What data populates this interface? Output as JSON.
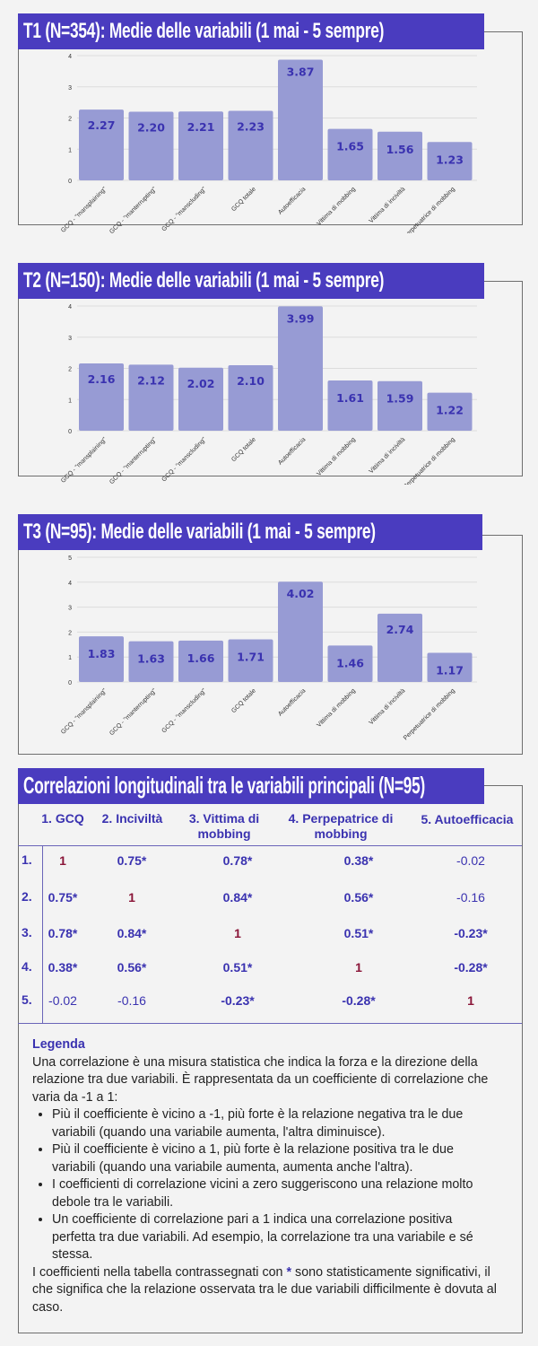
{
  "colors": {
    "header": "#4a3cbf",
    "bar": "#979bd4",
    "value": "#3a32b0",
    "diag": "#8a1538"
  },
  "categories": [
    "GCQ - \"mansplaining\"",
    "GCQ - \"manterrupting\"",
    "GCQ - \"manscluding\"",
    "GCQ totale",
    "Autoefficacia",
    "Vittima di mobbing",
    "Vittima di inciviltà",
    "Perpetuatrice di mobbing"
  ],
  "chart_data": [
    {
      "type": "bar",
      "title": "T1 (N=354): Medie delle variabili (1 mai - 5 sempre)",
      "values": [
        2.27,
        2.2,
        2.21,
        2.23,
        3.87,
        1.65,
        1.56,
        1.23
      ],
      "labels": [
        "2.27",
        "2.20",
        "2.21",
        "2.23",
        "3.87",
        "1.65",
        "1.56",
        "1.23"
      ],
      "ylim": [
        0,
        4
      ],
      "yticks": [
        "0",
        "1",
        "2",
        "3",
        "4"
      ],
      "grid": true
    },
    {
      "type": "bar",
      "title": "T2 (N=150): Medie delle variabili (1 mai - 5 sempre)",
      "values": [
        2.16,
        2.12,
        2.02,
        2.1,
        3.99,
        1.61,
        1.59,
        1.22
      ],
      "labels": [
        "2.16",
        "2.12",
        "2.02",
        "2.10",
        "3.99",
        "1.61",
        "1.59",
        "1.22"
      ],
      "ylim": [
        0,
        4
      ],
      "yticks": [
        "0",
        "1",
        "2",
        "3",
        "4"
      ],
      "grid": true
    },
    {
      "type": "bar",
      "title": "T3 (N=95): Medie delle variabili (1 mai - 5 sempre)",
      "values": [
        1.83,
        1.63,
        1.66,
        1.71,
        4.02,
        1.46,
        2.74,
        1.17
      ],
      "labels": [
        "1.83",
        "1.63",
        "1.66",
        "1.71",
        "4.02",
        "1.46",
        "2.74",
        "1.17"
      ],
      "ylim": [
        0,
        5
      ],
      "yticks": [
        "0",
        "1",
        "2",
        "3",
        "4",
        "5"
      ],
      "grid": true
    }
  ],
  "table": {
    "title": "Correlazioni longitudinali tra le variabili principali (N=95)",
    "headers": [
      "1. GCQ",
      "2. Inciviltà",
      "3. Vittima di mobbing",
      "4. Perpepatrice di mobbing",
      "5. Autoefficacia"
    ],
    "row_labels": [
      "1.",
      "2.",
      "3.",
      "4.",
      "5."
    ],
    "rows": [
      [
        {
          "v": "1",
          "t": "one"
        },
        {
          "v": "0.75*",
          "t": "sig"
        },
        {
          "v": "0.78*",
          "t": "sig"
        },
        {
          "v": "0.38*",
          "t": "sig"
        },
        {
          "v": "-0.02",
          "t": "ns"
        }
      ],
      [
        {
          "v": "0.75*",
          "t": "sig"
        },
        {
          "v": "1",
          "t": "one"
        },
        {
          "v": "0.84*",
          "t": "sig"
        },
        {
          "v": "0.56*",
          "t": "sig"
        },
        {
          "v": "-0.16",
          "t": "ns"
        }
      ],
      [
        {
          "v": "0.78*",
          "t": "sig"
        },
        {
          "v": "0.84*",
          "t": "sig"
        },
        {
          "v": "1",
          "t": "one"
        },
        {
          "v": "0.51*",
          "t": "sig"
        },
        {
          "v": "-0.23*",
          "t": "sig"
        }
      ],
      [
        {
          "v": "0.38*",
          "t": "sig"
        },
        {
          "v": "0.56*",
          "t": "sig"
        },
        {
          "v": "0.51*",
          "t": "sig"
        },
        {
          "v": "1",
          "t": "one"
        },
        {
          "v": "-0.28*",
          "t": "sig"
        }
      ],
      [
        {
          "v": "-0.02",
          "t": "ns"
        },
        {
          "v": "-0.16",
          "t": "ns"
        },
        {
          "v": "-0.23*",
          "t": "sig"
        },
        {
          "v": "-0.28*",
          "t": "sig"
        },
        {
          "v": "1",
          "t": "one"
        }
      ]
    ]
  },
  "legend": {
    "title": "Legenda",
    "intro": "Una correlazione è una misura statistica che indica la forza e la direzione della relazione tra due variabili. È rappresentata da un coefficiente di correlazione che varia da -1 a 1:",
    "bullets": [
      "Più il coefficiente è vicino a -1, più forte è la relazione negativa tra le due variabili (quando una variabile aumenta, l'altra diminuisce).",
      "Più il coefficiente è vicino a 1, più forte è la relazione positiva tra le due variabili (quando una variabile aumenta, aumenta anche l'altra).",
      "I coefficienti di correlazione vicini a zero suggeriscono una relazione molto debole tra le variabili.",
      "Un coefficiente di correlazione pari a 1 indica una correlazione positiva perfetta tra due variabili. Ad esempio, la correlazione tra una variabile e sé stessa."
    ],
    "outro_pre": "I coefficienti nella tabella contrassegnati con",
    "star": "*",
    "outro_post": "sono statisticamente significativi, il che significa che la relazione osservata tra le due variabili difficilmente è dovuta al caso."
  }
}
